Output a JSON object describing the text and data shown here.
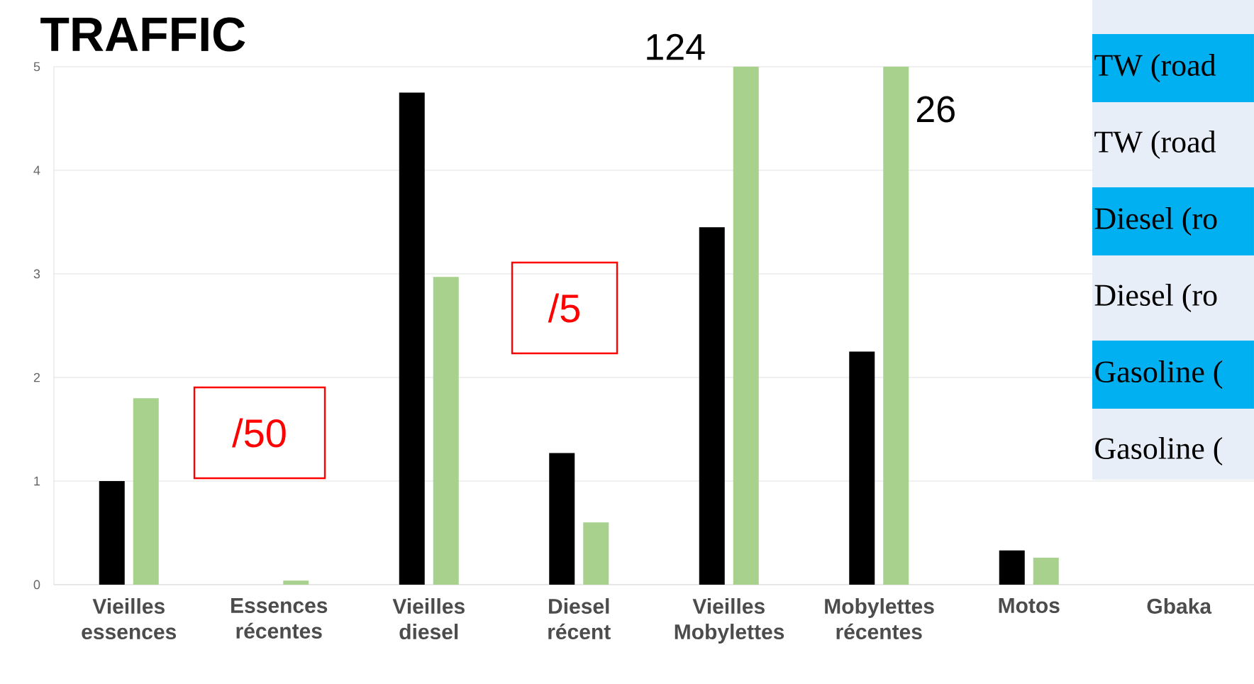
{
  "chart_data": {
    "type": "bar",
    "title": "TRAFFIC",
    "categories": [
      "Vieilles essences",
      "Essences récentes",
      "Vieilles diesel",
      "Diesel récent",
      "Vieilles Mobylettes",
      "Mobylettes récentes",
      "Motos",
      "Gbaka"
    ],
    "series": [
      {
        "color": "#000000",
        "values": [
          1.0,
          null,
          4.75,
          1.27,
          3.45,
          2.25,
          0.33,
          null
        ]
      },
      {
        "color": "#a9d18e",
        "values": [
          1.8,
          0.04,
          2.97,
          0.6,
          5,
          5,
          0.26,
          null
        ]
      }
    ],
    "ylim": [
      0,
      5
    ],
    "yticks": [
      0,
      1,
      2,
      3,
      4,
      5
    ],
    "grid": "y",
    "annotations": [
      {
        "text": "124",
        "x": "Vieilles Mobylettes",
        "y": 5
      },
      {
        "text": "26",
        "x": "Mobylettes récentes",
        "y": 5
      },
      "/50",
      "/5",
      "TW (road",
      "TW (road",
      "Diesel (ro",
      "Diesel (ro",
      "Gasoline (",
      "Gasoline ("
    ]
  }
}
